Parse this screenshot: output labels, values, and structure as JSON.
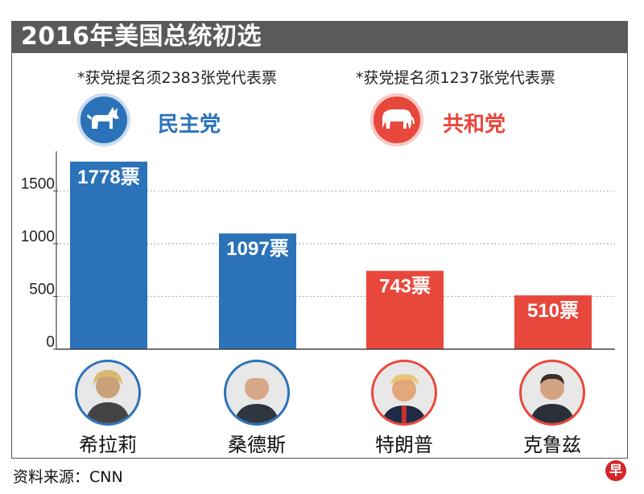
{
  "title": "2016年美国总统初选",
  "parties": [
    {
      "requirement": "*获党提名须2383张党代表票",
      "name": "民主党",
      "icon": "donkey-icon",
      "color": "#2b72b9"
    },
    {
      "requirement": "*获党提名须1237张党代表票",
      "name": "共和党",
      "icon": "elephant-icon",
      "color": "#e8473b"
    }
  ],
  "candidates": [
    {
      "name": "希拉莉",
      "party": "dem"
    },
    {
      "name": "桑德斯",
      "party": "dem"
    },
    {
      "name": "特朗普",
      "party": "rep"
    },
    {
      "name": "克鲁兹",
      "party": "rep"
    }
  ],
  "source": "资料来源：CNN",
  "logo_text": "早",
  "chart_data": {
    "type": "bar",
    "categories": [
      "希拉莉",
      "桑德斯",
      "特朗普",
      "克鲁兹"
    ],
    "values": [
      1778,
      1097,
      743,
      510
    ],
    "data_labels": [
      "1778票",
      "1097票",
      "743票",
      "510票"
    ],
    "bar_colors": [
      "#2b72b9",
      "#2b72b9",
      "#e8473b",
      "#e8473b"
    ],
    "yticks": [
      0,
      500,
      1000,
      1500
    ],
    "ylim": [
      0,
      1800
    ],
    "grid": true,
    "grid_style": "dotted"
  }
}
